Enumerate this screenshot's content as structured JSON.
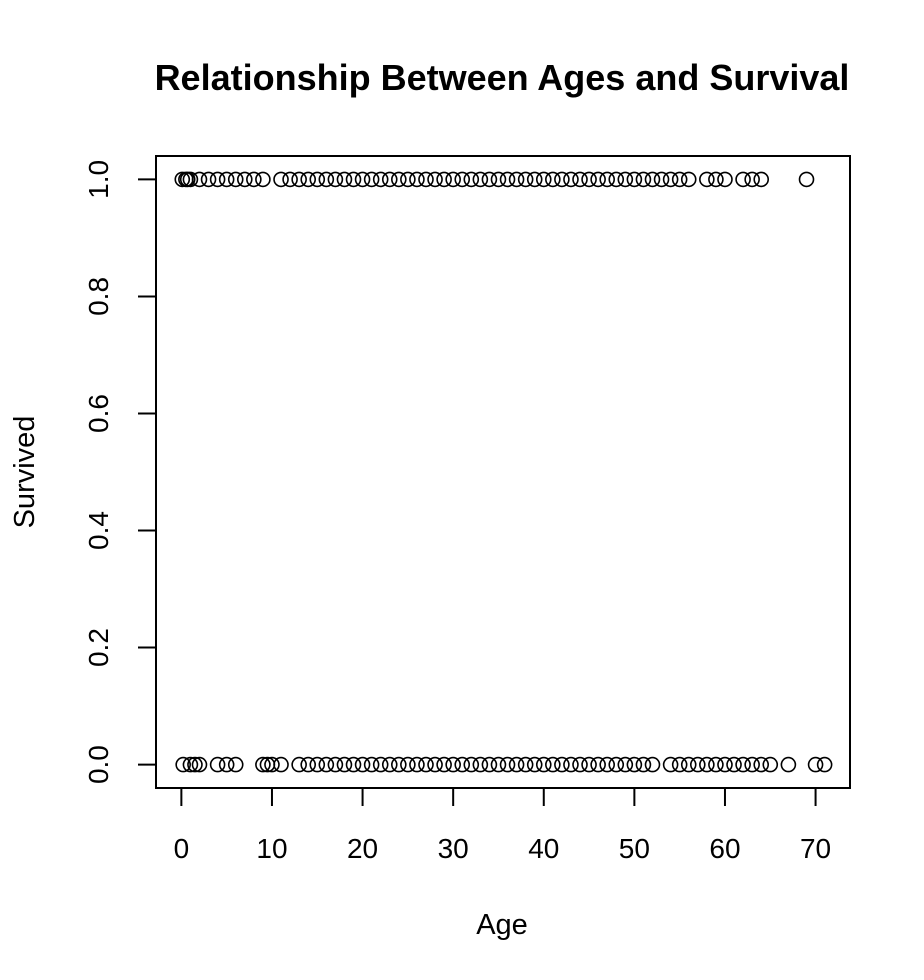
{
  "chart_data": {
    "type": "scatter",
    "title": "Relationship Between Ages and Survival",
    "xlabel": "Age",
    "ylabel": "Survived",
    "xlim": [
      -2.8,
      73.8
    ],
    "ylim": [
      -0.04,
      1.04
    ],
    "xticks": [
      0,
      10,
      20,
      30,
      40,
      50,
      60,
      70
    ],
    "xtick_labels": [
      "0",
      "10",
      "20",
      "30",
      "40",
      "50",
      "60",
      "70"
    ],
    "yticks": [
      0,
      0.2,
      0.4,
      0.6,
      0.8,
      1
    ],
    "ytick_labels": [
      "0.0",
      "0.2",
      "0.4",
      "0.6",
      "0.8",
      "1.0"
    ],
    "grid": false,
    "marker": "open-circle",
    "colors": {
      "marker": "#000000",
      "axis": "#000000",
      "background": "#ffffff"
    },
    "series": [
      {
        "y": 1,
        "x": [
          0.1,
          0.5,
          0.7,
          1,
          2,
          3,
          4,
          5,
          6,
          7,
          8,
          9,
          11,
          12,
          13,
          14,
          15,
          16,
          17,
          18,
          19,
          20,
          21,
          22,
          23,
          24,
          25,
          26,
          27,
          28,
          29,
          30,
          31,
          32,
          33,
          34,
          35,
          36,
          37,
          38,
          39,
          40,
          41,
          42,
          43,
          44,
          45,
          46,
          47,
          48,
          49,
          50,
          51,
          52,
          53,
          54,
          55,
          56,
          58,
          59,
          60,
          62,
          63,
          64,
          69
        ]
      },
      {
        "y": 0,
        "x": [
          0.2,
          1,
          1.5,
          2,
          4,
          5,
          6,
          9,
          9.5,
          10,
          11,
          13,
          14,
          15,
          16,
          17,
          18,
          19,
          20,
          21,
          22,
          23,
          24,
          25,
          26,
          27,
          28,
          29,
          30,
          31,
          32,
          33,
          34,
          35,
          36,
          37,
          38,
          39,
          40,
          41,
          42,
          43,
          44,
          45,
          46,
          47,
          48,
          49,
          50,
          51,
          52,
          54,
          55,
          56,
          57,
          58,
          59,
          60,
          61,
          62,
          63,
          64,
          65,
          67,
          70,
          71
        ]
      }
    ]
  }
}
